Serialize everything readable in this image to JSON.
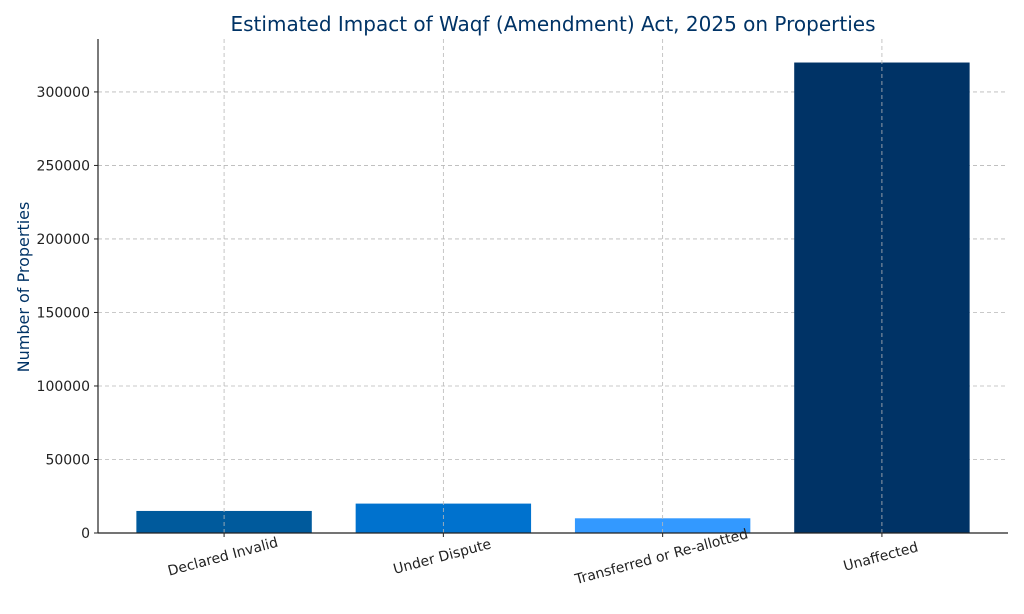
{
  "chart_data": {
    "type": "bar",
    "title": "Estimated Impact of Waqf (Amendment) Act, 2025 on Properties",
    "xlabel": "",
    "ylabel": "Number of Properties",
    "categories": [
      "Declared Invalid",
      "Under Dispute",
      "Transferred or Re-allotted",
      "Unaffected"
    ],
    "values": [
      15000,
      20000,
      10000,
      320000
    ],
    "bar_colors": [
      "#005a9c",
      "#0072ce",
      "#3399ff",
      "#003366"
    ],
    "ylim": [
      0,
      336000
    ],
    "yticks": [
      0,
      50000,
      100000,
      150000,
      200000,
      250000,
      300000
    ],
    "grid": true,
    "title_color": "#003366",
    "ylabel_color": "#003366"
  }
}
